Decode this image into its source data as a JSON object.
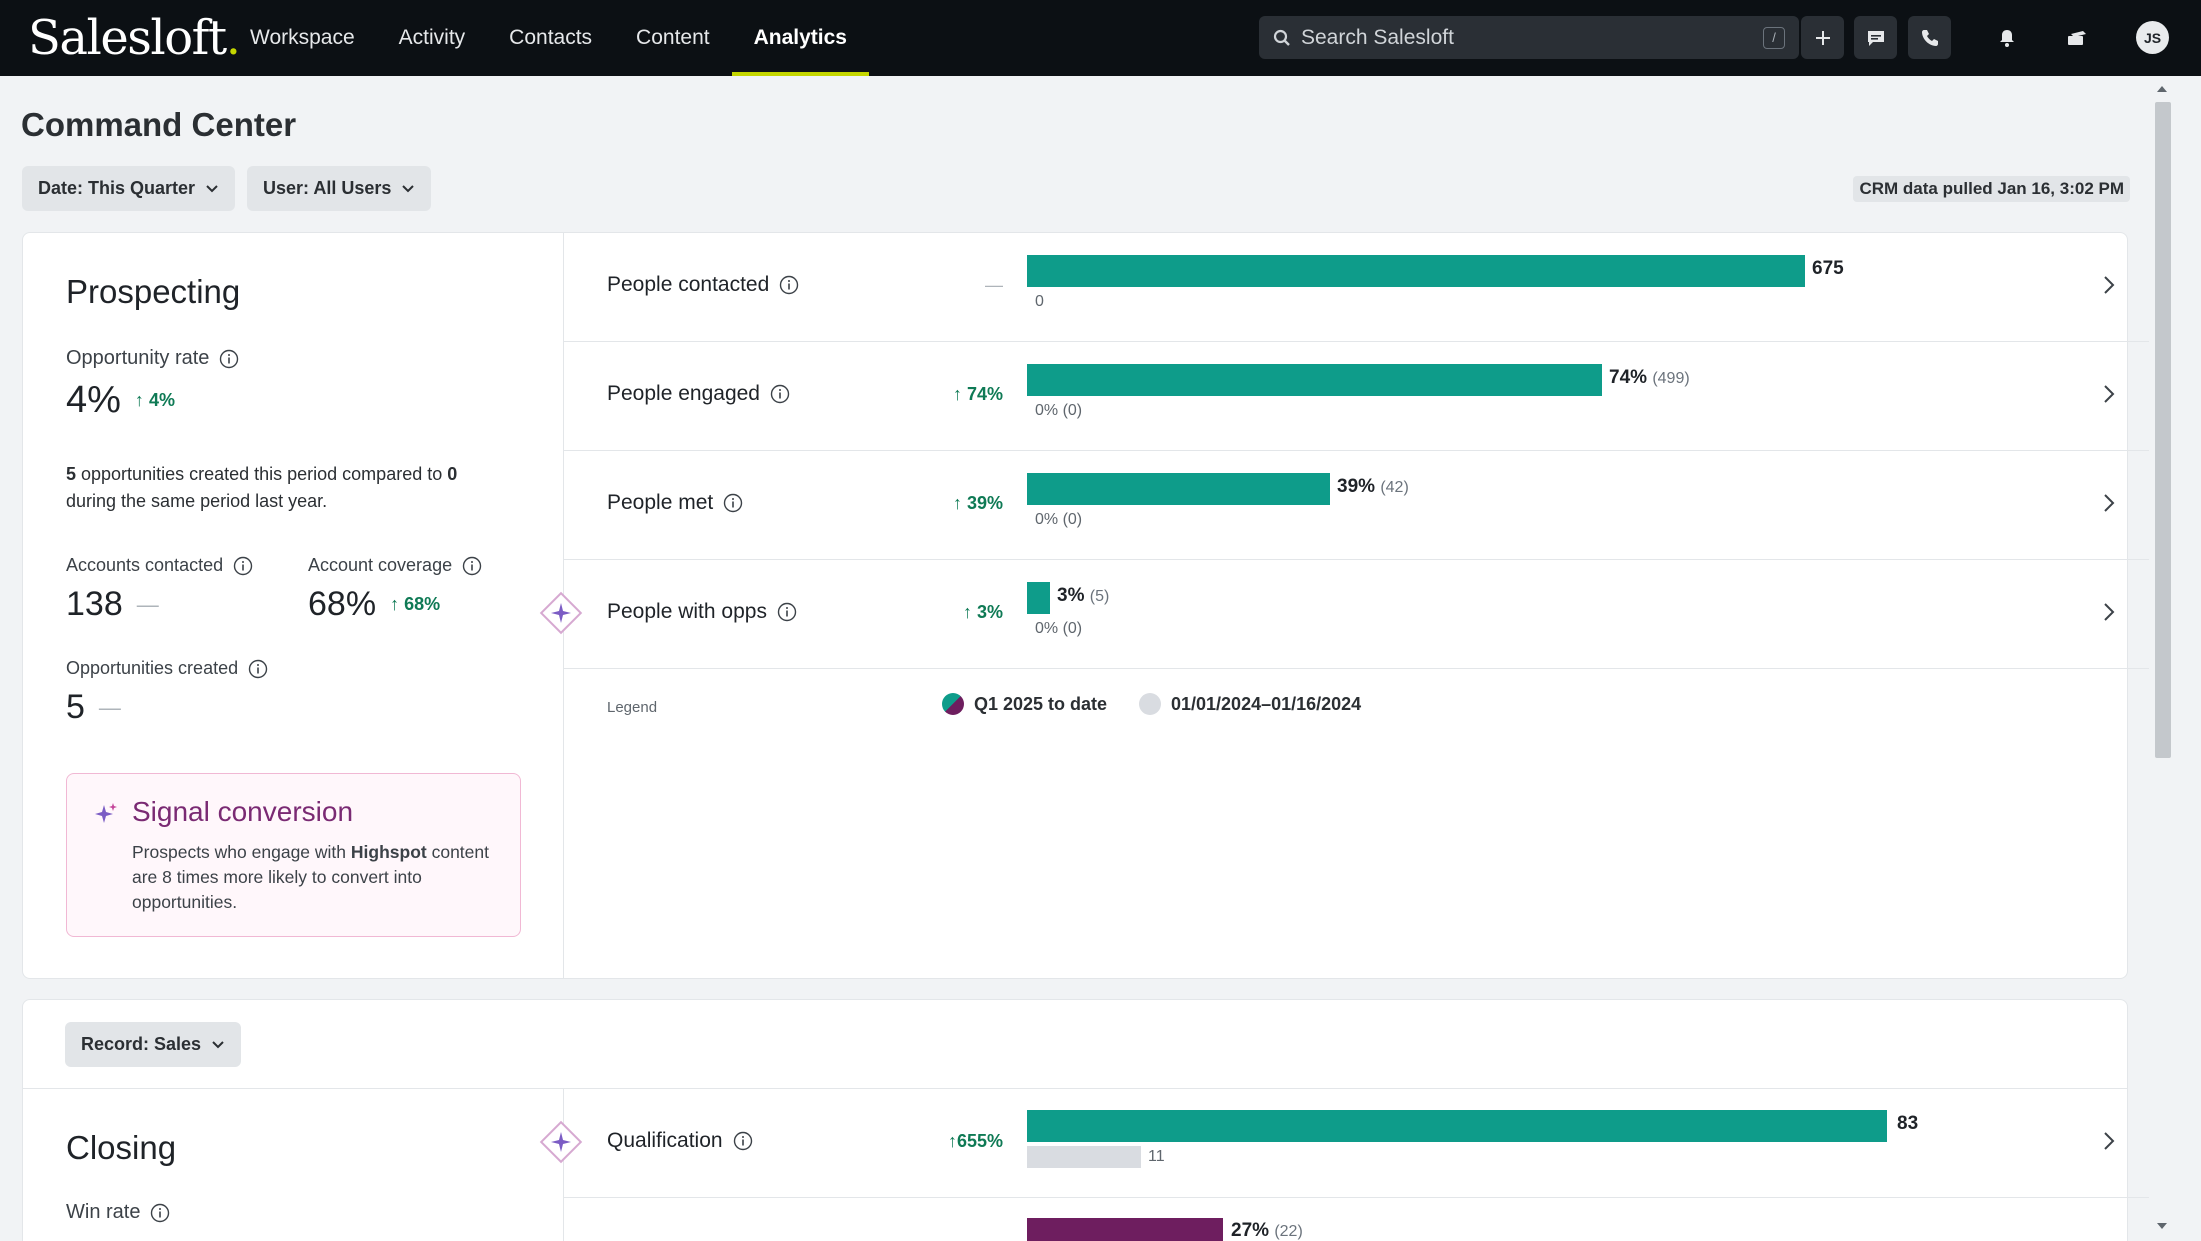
{
  "brand": {
    "name": "Salesloft",
    "dot": "."
  },
  "nav": {
    "items": [
      {
        "label": "Workspace",
        "active": false
      },
      {
        "label": "Activity",
        "active": false
      },
      {
        "label": "Contacts",
        "active": false
      },
      {
        "label": "Content",
        "active": false
      },
      {
        "label": "Analytics",
        "active": true
      }
    ]
  },
  "search": {
    "placeholder": "Search Salesloft",
    "shortcut": "/"
  },
  "user": {
    "initials": "JS"
  },
  "page": {
    "title": "Command Center"
  },
  "filters": {
    "date": "Date: This Quarter",
    "user": "User: All Users",
    "record": "Record: Sales"
  },
  "crm_note": "CRM data pulled Jan 16, 3:02 PM",
  "prospecting": {
    "title": "Prospecting",
    "opportunity_rate": {
      "label": "Opportunity rate",
      "value": "4%",
      "delta": "4%"
    },
    "description": {
      "count": "5",
      "text1": " opportunities created this period compared to ",
      "prev": "0",
      "text2": " during the same period last year."
    },
    "accounts_contacted": {
      "label": "Accounts contacted",
      "value": "138",
      "delta": "—"
    },
    "account_coverage": {
      "label": "Account coverage",
      "value": "68%",
      "delta": "68%"
    },
    "opportunities_created": {
      "label": "Opportunities created",
      "value": "5",
      "delta": "—"
    },
    "signal": {
      "title": "Signal conversion",
      "text1": "Prospects who engage with ",
      "highlight": "Highspot",
      "text2": " content are 8 times more likely to convert into opportunities."
    },
    "rows": [
      {
        "label": "People contacted",
        "delta": "—",
        "current": "675",
        "current_sub": "",
        "previous": "0",
        "current_fraction": 1.0
      },
      {
        "label": "People engaged",
        "delta": "74%",
        "current": "74%",
        "current_sub": "(499)",
        "previous": "0% (0)",
        "current_fraction": 0.739
      },
      {
        "label": "People met",
        "delta": "39%",
        "current": "39%",
        "current_sub": "(42)",
        "previous": "0% (0)",
        "current_fraction": 0.39
      },
      {
        "label": "People with opps",
        "delta": "3%",
        "current": "3%",
        "current_sub": "(5)",
        "previous": "0% (0)",
        "current_fraction": 0.03
      }
    ],
    "legend": {
      "label": "Legend",
      "current": "Q1 2025 to date",
      "previous": "01/01/2024–01/16/2024"
    }
  },
  "closing": {
    "title": "Closing",
    "win_rate": {
      "label": "Win rate"
    },
    "rows": [
      {
        "label": "Qualification",
        "delta": "655%",
        "current": "83",
        "previous": "11"
      },
      {
        "label": "",
        "delta": "",
        "current": "27%",
        "current_sub": "(22)",
        "previous": ""
      }
    ]
  },
  "colors": {
    "teal": "#0e9c8a",
    "purple": "#6e1e5f",
    "accent": "#c4d600",
    "positive": "#0f7a55"
  }
}
